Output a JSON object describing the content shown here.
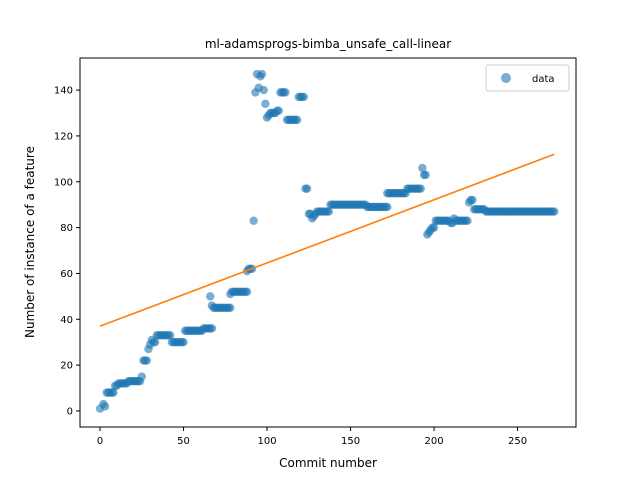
{
  "chart_data": {
    "type": "scatter",
    "title": "ml-adamsprogs-bimba_unsafe_call-linear",
    "xlabel": "Commit number",
    "ylabel": "Number of instance of a feature",
    "xlim": [
      -12,
      285
    ],
    "ylim": [
      -7,
      154
    ],
    "xticks": [
      0,
      50,
      100,
      150,
      200,
      250
    ],
    "yticks": [
      0,
      20,
      40,
      60,
      80,
      100,
      120,
      140
    ],
    "grid": false,
    "legend_position": "top-right",
    "legend": [
      "data"
    ],
    "colors": {
      "data": "#1f77b4",
      "fit": "#ff7f0e"
    },
    "series": [
      {
        "name": "data",
        "kind": "scatter",
        "segments": [
          [
            0,
            1
          ],
          [
            2,
            3
          ],
          [
            3,
            2
          ],
          [
            4,
            8
          ],
          [
            5,
            8
          ],
          [
            6,
            8
          ],
          [
            7,
            8
          ],
          [
            8,
            8
          ],
          [
            9,
            11
          ],
          [
            10,
            11
          ],
          [
            11,
            12
          ],
          [
            12,
            12
          ],
          [
            13,
            12
          ],
          [
            14,
            12
          ],
          [
            15,
            12
          ],
          [
            16,
            12
          ],
          [
            17,
            13
          ],
          [
            18,
            13
          ],
          [
            19,
            13
          ],
          [
            20,
            13
          ],
          [
            21,
            13
          ],
          [
            22,
            13
          ],
          [
            23,
            13
          ],
          [
            24,
            13
          ],
          [
            25,
            15
          ],
          [
            26,
            22
          ],
          [
            27,
            22
          ],
          [
            28,
            22
          ],
          [
            29,
            27
          ],
          [
            30,
            29
          ],
          [
            31,
            31
          ],
          [
            32,
            30
          ],
          [
            33,
            30
          ],
          [
            34,
            33
          ],
          [
            35,
            33
          ],
          [
            36,
            33
          ],
          [
            37,
            33
          ],
          [
            38,
            33
          ],
          [
            39,
            33
          ],
          [
            40,
            33
          ],
          [
            41,
            33
          ],
          [
            42,
            33
          ],
          [
            43,
            30
          ],
          [
            44,
            30
          ],
          [
            45,
            30
          ],
          [
            46,
            30
          ],
          [
            47,
            30
          ],
          [
            48,
            30
          ],
          [
            49,
            30
          ],
          [
            50,
            30
          ],
          [
            51,
            35
          ],
          [
            52,
            35
          ],
          [
            53,
            35
          ],
          [
            54,
            35
          ],
          [
            55,
            35
          ],
          [
            56,
            35
          ],
          [
            57,
            35
          ],
          [
            58,
            35
          ],
          [
            59,
            35
          ],
          [
            60,
            35
          ],
          [
            61,
            35
          ],
          [
            62,
            36
          ],
          [
            63,
            36
          ],
          [
            64,
            36
          ],
          [
            65,
            36
          ],
          [
            66,
            36
          ],
          [
            67,
            36
          ],
          [
            66,
            50
          ],
          [
            67,
            46
          ],
          [
            68,
            45
          ],
          [
            69,
            45
          ],
          [
            70,
            45
          ],
          [
            71,
            45
          ],
          [
            72,
            45
          ],
          [
            73,
            45
          ],
          [
            74,
            45
          ],
          [
            75,
            45
          ],
          [
            76,
            45
          ],
          [
            77,
            45
          ],
          [
            78,
            45
          ],
          [
            78,
            51
          ],
          [
            79,
            52
          ],
          [
            80,
            52
          ],
          [
            81,
            52
          ],
          [
            82,
            52
          ],
          [
            83,
            52
          ],
          [
            84,
            52
          ],
          [
            85,
            52
          ],
          [
            86,
            52
          ],
          [
            87,
            52
          ],
          [
            88,
            52
          ],
          [
            88,
            61
          ],
          [
            89,
            62
          ],
          [
            90,
            62
          ],
          [
            91,
            62
          ],
          [
            92,
            83
          ],
          [
            93,
            139
          ],
          [
            94,
            147
          ],
          [
            95,
            141
          ],
          [
            96,
            146
          ],
          [
            97,
            147
          ],
          [
            98,
            140
          ],
          [
            99,
            134
          ],
          [
            100,
            128
          ],
          [
            101,
            129
          ],
          [
            102,
            130
          ],
          [
            103,
            130
          ],
          [
            104,
            130
          ],
          [
            105,
            130
          ],
          [
            106,
            131
          ],
          [
            107,
            131
          ],
          [
            108,
            139
          ],
          [
            109,
            139
          ],
          [
            110,
            139
          ],
          [
            111,
            139
          ],
          [
            112,
            127
          ],
          [
            113,
            127
          ],
          [
            114,
            127
          ],
          [
            115,
            127
          ],
          [
            116,
            127
          ],
          [
            117,
            127
          ],
          [
            118,
            127
          ],
          [
            119,
            137
          ],
          [
            120,
            137
          ],
          [
            121,
            137
          ],
          [
            122,
            137
          ],
          [
            123,
            97
          ],
          [
            124,
            97
          ],
          [
            125,
            86
          ],
          [
            126,
            86
          ],
          [
            127,
            84
          ],
          [
            128,
            85
          ],
          [
            129,
            86
          ],
          [
            130,
            87
          ],
          [
            131,
            87
          ],
          [
            132,
            87
          ],
          [
            133,
            87
          ],
          [
            134,
            87
          ],
          [
            135,
            87
          ],
          [
            136,
            87
          ],
          [
            137,
            87
          ],
          [
            138,
            90
          ],
          [
            139,
            90
          ],
          [
            140,
            90
          ],
          [
            141,
            90
          ],
          [
            142,
            90
          ],
          [
            143,
            90
          ],
          [
            144,
            90
          ],
          [
            145,
            90
          ],
          [
            146,
            90
          ],
          [
            147,
            90
          ],
          [
            148,
            90
          ],
          [
            149,
            90
          ],
          [
            150,
            90
          ],
          [
            151,
            90
          ],
          [
            152,
            90
          ],
          [
            153,
            90
          ],
          [
            154,
            90
          ],
          [
            155,
            90
          ],
          [
            156,
            90
          ],
          [
            157,
            90
          ],
          [
            158,
            90
          ],
          [
            159,
            90
          ],
          [
            160,
            89
          ],
          [
            161,
            89
          ],
          [
            162,
            89
          ],
          [
            163,
            89
          ],
          [
            164,
            89
          ],
          [
            165,
            89
          ],
          [
            166,
            89
          ],
          [
            167,
            89
          ],
          [
            168,
            89
          ],
          [
            169,
            89
          ],
          [
            170,
            89
          ],
          [
            171,
            89
          ],
          [
            172,
            89
          ],
          [
            172,
            95
          ],
          [
            173,
            95
          ],
          [
            174,
            95
          ],
          [
            175,
            95
          ],
          [
            176,
            95
          ],
          [
            177,
            95
          ],
          [
            178,
            95
          ],
          [
            179,
            95
          ],
          [
            180,
            95
          ],
          [
            181,
            95
          ],
          [
            182,
            95
          ],
          [
            183,
            95
          ],
          [
            184,
            97
          ],
          [
            185,
            97
          ],
          [
            186,
            97
          ],
          [
            187,
            97
          ],
          [
            188,
            97
          ],
          [
            189,
            97
          ],
          [
            190,
            97
          ],
          [
            191,
            97
          ],
          [
            192,
            97
          ],
          [
            193,
            106
          ],
          [
            194,
            103
          ],
          [
            195,
            103
          ],
          [
            196,
            77
          ],
          [
            197,
            78
          ],
          [
            198,
            79
          ],
          [
            199,
            80
          ],
          [
            200,
            80
          ],
          [
            201,
            83
          ],
          [
            202,
            83
          ],
          [
            203,
            83
          ],
          [
            204,
            83
          ],
          [
            205,
            83
          ],
          [
            206,
            83
          ],
          [
            207,
            83
          ],
          [
            208,
            83
          ],
          [
            209,
            83
          ],
          [
            210,
            82
          ],
          [
            211,
            82
          ],
          [
            212,
            84
          ],
          [
            213,
            83
          ],
          [
            214,
            83
          ],
          [
            215,
            83
          ],
          [
            216,
            83
          ],
          [
            217,
            83
          ],
          [
            218,
            83
          ],
          [
            219,
            83
          ],
          [
            220,
            83
          ],
          [
            221,
            91
          ],
          [
            222,
            92
          ],
          [
            223,
            92
          ],
          [
            224,
            88
          ],
          [
            225,
            88
          ],
          [
            226,
            88
          ],
          [
            227,
            88
          ],
          [
            228,
            88
          ],
          [
            229,
            88
          ],
          [
            230,
            88
          ],
          [
            231,
            87
          ],
          [
            232,
            87
          ],
          [
            233,
            87
          ],
          [
            234,
            87
          ],
          [
            235,
            87
          ],
          [
            236,
            87
          ],
          [
            237,
            87
          ],
          [
            238,
            87
          ],
          [
            239,
            87
          ],
          [
            240,
            87
          ],
          [
            241,
            87
          ],
          [
            242,
            87
          ],
          [
            243,
            87
          ],
          [
            244,
            87
          ],
          [
            245,
            87
          ],
          [
            246,
            87
          ],
          [
            247,
            87
          ],
          [
            248,
            87
          ],
          [
            249,
            87
          ],
          [
            250,
            87
          ],
          [
            251,
            87
          ],
          [
            252,
            87
          ],
          [
            253,
            87
          ],
          [
            254,
            87
          ],
          [
            255,
            87
          ],
          [
            256,
            87
          ],
          [
            257,
            87
          ],
          [
            258,
            87
          ],
          [
            259,
            87
          ],
          [
            260,
            87
          ],
          [
            261,
            87
          ],
          [
            262,
            87
          ],
          [
            263,
            87
          ],
          [
            264,
            87
          ],
          [
            265,
            87
          ],
          [
            266,
            87
          ],
          [
            267,
            87
          ],
          [
            268,
            87
          ],
          [
            269,
            87
          ],
          [
            270,
            87
          ],
          [
            271,
            87
          ],
          [
            272,
            87
          ]
        ]
      },
      {
        "name": "",
        "kind": "line",
        "points": [
          [
            0,
            37
          ],
          [
            272,
            112
          ]
        ]
      }
    ]
  }
}
